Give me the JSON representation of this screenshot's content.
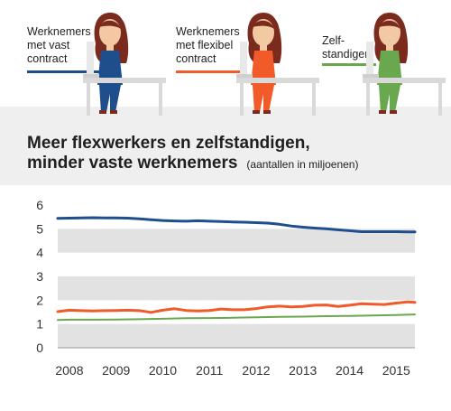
{
  "legend": [
    {
      "label": "Werknemers\nmet vast\ncontract",
      "color": "#1f4e8c"
    },
    {
      "label": "Werknemers\nmet flexibel\ncontract",
      "color": "#f15a29"
    },
    {
      "label": "Zelf-\nstandigen",
      "color": "#6aa84f"
    }
  ],
  "colors": {
    "background_band": "#efefef",
    "grid_band": "#e2e2e2",
    "skin": "#f3c9a4",
    "hair": "#7b2a1e",
    "desk": "#d9d9d9"
  },
  "title_line1": "Meer flexwerkers en zelfstandigen,",
  "title_line2": "minder vaste werknemers",
  "subtitle": "(aantallen in miljoenen)",
  "chart_data": {
    "type": "line",
    "title": "Meer flexwerkers en zelfstandigen, minder vaste werknemers",
    "subtitle": "(aantallen in miljoenen)",
    "ylim": [
      0,
      6
    ],
    "yticks": [
      "0",
      "1",
      "2",
      "3",
      "4",
      "5",
      "6"
    ],
    "xlim": [
      2008,
      2015.4
    ],
    "xticks": [
      "2008",
      "2009",
      "2010",
      "2011",
      "2012",
      "2013",
      "2014",
      "2015"
    ],
    "grid": "alternating horizontal bands",
    "series": [
      {
        "name": "Werknemers met vast contract",
        "color": "#1f4e8c",
        "x": [
          2007.75,
          2008.0,
          2008.25,
          2008.5,
          2008.75,
          2009.0,
          2009.25,
          2009.5,
          2009.75,
          2010.0,
          2010.25,
          2010.5,
          2010.75,
          2011.0,
          2011.25,
          2011.5,
          2011.75,
          2012.0,
          2012.25,
          2012.5,
          2012.75,
          2013.0,
          2013.25,
          2013.5,
          2013.75,
          2014.0,
          2014.25,
          2014.5,
          2014.75,
          2015.0,
          2015.25,
          2015.4
        ],
        "y": [
          5.44,
          5.45,
          5.46,
          5.47,
          5.46,
          5.46,
          5.45,
          5.42,
          5.38,
          5.35,
          5.33,
          5.32,
          5.34,
          5.32,
          5.31,
          5.29,
          5.28,
          5.26,
          5.24,
          5.19,
          5.12,
          5.07,
          5.03,
          5.0,
          4.96,
          4.92,
          4.88,
          4.88,
          4.88,
          4.88,
          4.87,
          4.87
        ]
      },
      {
        "name": "Werknemers met flexibel contract",
        "color": "#f15a29",
        "x": [
          2007.75,
          2008.0,
          2008.25,
          2008.5,
          2008.75,
          2009.0,
          2009.25,
          2009.5,
          2009.75,
          2010.0,
          2010.25,
          2010.5,
          2010.75,
          2011.0,
          2011.25,
          2011.5,
          2011.75,
          2012.0,
          2012.25,
          2012.5,
          2012.75,
          2013.0,
          2013.25,
          2013.5,
          2013.75,
          2014.0,
          2014.25,
          2014.5,
          2014.75,
          2015.0,
          2015.25,
          2015.4
        ],
        "y": [
          1.52,
          1.58,
          1.56,
          1.55,
          1.56,
          1.57,
          1.58,
          1.56,
          1.49,
          1.58,
          1.64,
          1.57,
          1.55,
          1.57,
          1.63,
          1.6,
          1.6,
          1.65,
          1.72,
          1.75,
          1.72,
          1.74,
          1.79,
          1.8,
          1.74,
          1.79,
          1.85,
          1.83,
          1.82,
          1.88,
          1.93,
          1.91
        ]
      },
      {
        "name": "Zelfstandigen",
        "color": "#6aa84f",
        "x": [
          2007.75,
          2008.0,
          2008.5,
          2009.0,
          2009.5,
          2010.0,
          2010.5,
          2011.0,
          2011.5,
          2012.0,
          2012.5,
          2013.0,
          2013.5,
          2014.0,
          2014.5,
          2015.0,
          2015.4
        ],
        "y": [
          1.17,
          1.18,
          1.18,
          1.19,
          1.2,
          1.22,
          1.24,
          1.25,
          1.26,
          1.28,
          1.3,
          1.31,
          1.33,
          1.34,
          1.36,
          1.38,
          1.4
        ]
      }
    ]
  }
}
